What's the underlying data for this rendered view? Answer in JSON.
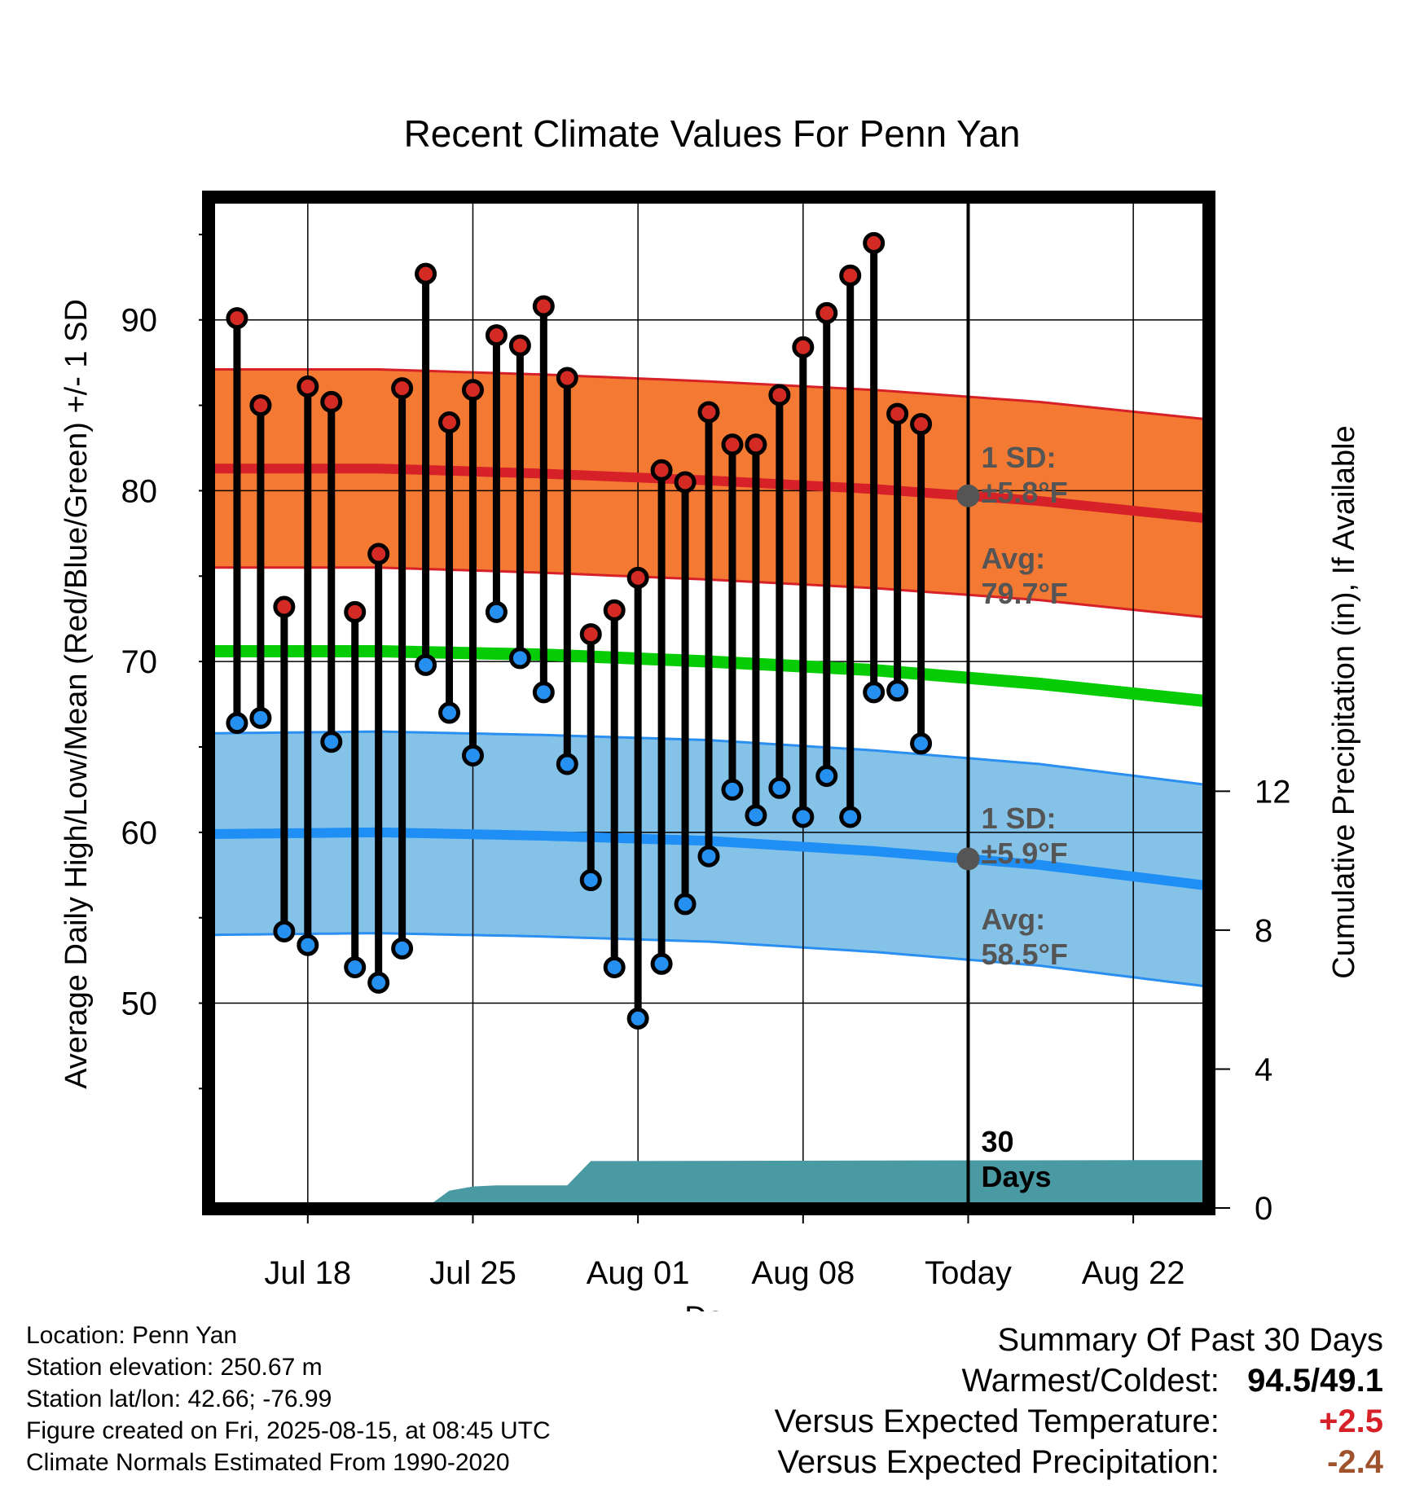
{
  "chart_data": {
    "type": "line",
    "title": "Recent Climate Values For Penn Yan",
    "xlabel": "Day",
    "ylabel": "Average Daily High/Low/Mean (Red/Blue/Green) +/- 1 SD",
    "y2label": "Cumulative Precipitation (in), If Available",
    "x_ticks": [
      {
        "date": "2025-07-18",
        "label": "Jul 18"
      },
      {
        "date": "2025-07-25",
        "label": "Jul 25"
      },
      {
        "date": "2025-08-01",
        "label": "Aug 01"
      },
      {
        "date": "2025-08-08",
        "label": "Aug 08"
      },
      {
        "date": "2025-08-15",
        "label": "Today"
      },
      {
        "date": "2025-08-22",
        "label": "Aug 22"
      }
    ],
    "xlim": [
      "2025-07-14",
      "2025-08-25"
    ],
    "ylim": [
      41,
      99
    ],
    "yticks": [
      50,
      60,
      70,
      80,
      90
    ],
    "y2lim": [
      0,
      30
    ],
    "y2ticks": [
      0,
      4,
      8,
      12
    ],
    "today": "2025-08-15",
    "observed": [
      {
        "date": "2025-07-15",
        "high": 90.1,
        "low": 66.4
      },
      {
        "date": "2025-07-16",
        "high": 85.0,
        "low": 66.7
      },
      {
        "date": "2025-07-17",
        "high": 73.2,
        "low": 54.2
      },
      {
        "date": "2025-07-18",
        "high": 86.1,
        "low": 53.4
      },
      {
        "date": "2025-07-19",
        "high": 85.2,
        "low": 65.3
      },
      {
        "date": "2025-07-20",
        "high": 72.9,
        "low": 52.1
      },
      {
        "date": "2025-07-21",
        "high": 76.3,
        "low": 51.2
      },
      {
        "date": "2025-07-22",
        "high": 86.0,
        "low": 53.2
      },
      {
        "date": "2025-07-23",
        "high": 92.7,
        "low": 69.8
      },
      {
        "date": "2025-07-24",
        "high": 84.0,
        "low": 67.0
      },
      {
        "date": "2025-07-25",
        "high": 85.9,
        "low": 64.5
      },
      {
        "date": "2025-07-26",
        "high": 89.1,
        "low": 72.9
      },
      {
        "date": "2025-07-27",
        "high": 88.5,
        "low": 70.2
      },
      {
        "date": "2025-07-28",
        "high": 90.8,
        "low": 68.2
      },
      {
        "date": "2025-07-29",
        "high": 86.6,
        "low": 64.0
      },
      {
        "date": "2025-07-30",
        "high": 71.6,
        "low": 57.2
      },
      {
        "date": "2025-07-31",
        "high": 73.0,
        "low": 52.1
      },
      {
        "date": "2025-08-01",
        "high": 74.9,
        "low": 49.1
      },
      {
        "date": "2025-08-02",
        "high": 81.2,
        "low": 52.3
      },
      {
        "date": "2025-08-03",
        "high": 80.5,
        "low": 55.8
      },
      {
        "date": "2025-08-04",
        "high": 84.6,
        "low": 58.6
      },
      {
        "date": "2025-08-05",
        "high": 82.7,
        "low": 62.5
      },
      {
        "date": "2025-08-06",
        "high": 82.7,
        "low": 61.0
      },
      {
        "date": "2025-08-07",
        "high": 85.6,
        "low": 62.6
      },
      {
        "date": "2025-08-08",
        "high": 88.4,
        "low": 60.9
      },
      {
        "date": "2025-08-09",
        "high": 90.4,
        "low": 63.3
      },
      {
        "date": "2025-08-10",
        "high": 92.6,
        "low": 60.9
      },
      {
        "date": "2025-08-11",
        "high": 94.5,
        "low": 68.2
      },
      {
        "date": "2025-08-12",
        "high": 84.5,
        "low": 68.3
      },
      {
        "date": "2025-08-13",
        "high": 83.9,
        "low": 65.2
      }
    ],
    "normals": [
      {
        "date": "2025-07-14",
        "high": 81.3,
        "low": 59.9,
        "mean": 70.6
      },
      {
        "date": "2025-07-21",
        "high": 81.3,
        "low": 60.0,
        "mean": 70.6
      },
      {
        "date": "2025-07-28",
        "high": 81.0,
        "low": 59.8,
        "mean": 70.4
      },
      {
        "date": "2025-08-04",
        "high": 80.6,
        "low": 59.5,
        "mean": 70.0
      },
      {
        "date": "2025-08-11",
        "high": 80.1,
        "low": 58.9,
        "mean": 69.5
      },
      {
        "date": "2025-08-18",
        "high": 79.4,
        "low": 58.1,
        "mean": 68.7
      },
      {
        "date": "2025-08-25",
        "high": 78.4,
        "low": 56.9,
        "mean": 67.7
      }
    ],
    "high_sd": 5.8,
    "low_sd": 5.9,
    "precip": [
      {
        "date": "2025-07-23",
        "value": 0.0
      },
      {
        "date": "2025-07-24",
        "value": 0.5
      },
      {
        "date": "2025-07-25",
        "value": 0.62
      },
      {
        "date": "2025-07-26",
        "value": 0.65
      },
      {
        "date": "2025-07-29",
        "value": 0.65
      },
      {
        "date": "2025-07-30",
        "value": 1.35
      },
      {
        "date": "2025-08-13",
        "value": 1.37
      },
      {
        "date": "2025-08-25",
        "value": 1.38
      }
    ],
    "annotations": {
      "high_sd_label": "1 SD:",
      "high_sd_value": "±5.8°F",
      "high_avg_label": "Avg:",
      "high_avg_value": "79.7°F",
      "low_sd_label": "1 SD:",
      "low_sd_value": "±5.9°F",
      "low_avg_label": "Avg:",
      "low_avg_value": "58.5°F",
      "window_count": "30",
      "window_label": "Days"
    },
    "colors": {
      "high_band": "#f47a33",
      "high_line": "#d52127",
      "low_band": "#84c2e8",
      "low_line": "#1f8ff5",
      "low_edge": "#2a8ff0",
      "mean_line": "#05cc05",
      "precip": "#4a9aa3",
      "high_dot": "#d42a24",
      "low_dot": "#2590f0",
      "marker": "#555555"
    }
  },
  "footer": {
    "location": "Location: Penn Yan",
    "elevation": "Station elevation: 250.67 m",
    "latlon": "Station lat/lon: 42.66; -76.99",
    "created": "Figure created on Fri, 2025-08-15, at 08:45 UTC",
    "normals": "Climate Normals Estimated From 1990-2020"
  },
  "summary": {
    "heading": "Summary Of Past 30 Days",
    "warmest_label": "Warmest/Coldest:",
    "warmest_value": "94.5/49.1",
    "temp_label": "Versus Expected Temperature:",
    "temp_value": "+2.5",
    "temp_color": "#d52127",
    "precip_label": "Versus Expected Precipitation:",
    "precip_value": "-2.4",
    "precip_color": "#a0522d"
  }
}
